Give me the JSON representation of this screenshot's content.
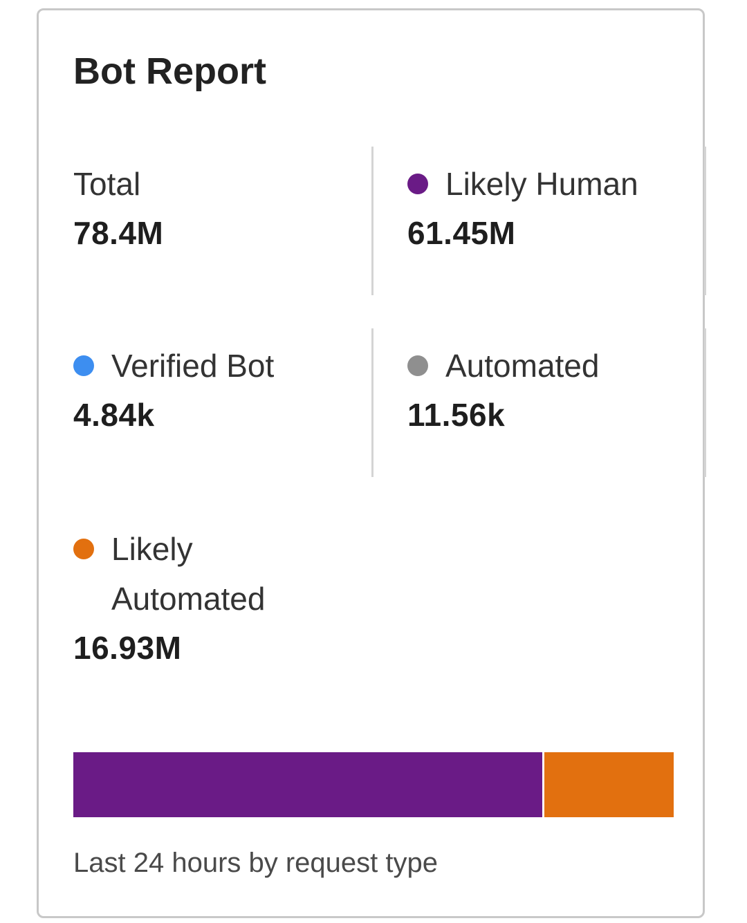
{
  "card": {
    "title": "Bot Report",
    "footer": "Last 24 hours by request type"
  },
  "stats": {
    "total": {
      "label": "Total",
      "value": "78.4M"
    },
    "likely_human": {
      "label": "Likely Human",
      "value": "61.45M",
      "color": "#6a1b86"
    },
    "verified_bot": {
      "label": "Verified Bot",
      "value": "4.84k",
      "color": "#3d8ef0"
    },
    "automated": {
      "label": "Automated",
      "value": "11.56k",
      "color": "#8f8f8f"
    },
    "likely_automated": {
      "label_line1": "Likely",
      "label_line2": "Automated",
      "value": "16.93M",
      "color": "#e2700f"
    }
  },
  "chart_data": {
    "type": "bar",
    "stacked": true,
    "orientation": "horizontal",
    "series": [
      {
        "name": "Likely Human",
        "values": [
          61.45
        ],
        "color": "#6a1b86"
      },
      {
        "name": "Likely Automated",
        "values": [
          16.93
        ],
        "color": "#e2700f"
      },
      {
        "name": "Automated",
        "values": [
          0.01156
        ],
        "color": "#8f8f8f"
      },
      {
        "name": "Verified Bot",
        "values": [
          0.00484
        ],
        "color": "#3d8ef0"
      }
    ],
    "xlabel": "",
    "ylabel": "",
    "grid": false
  }
}
